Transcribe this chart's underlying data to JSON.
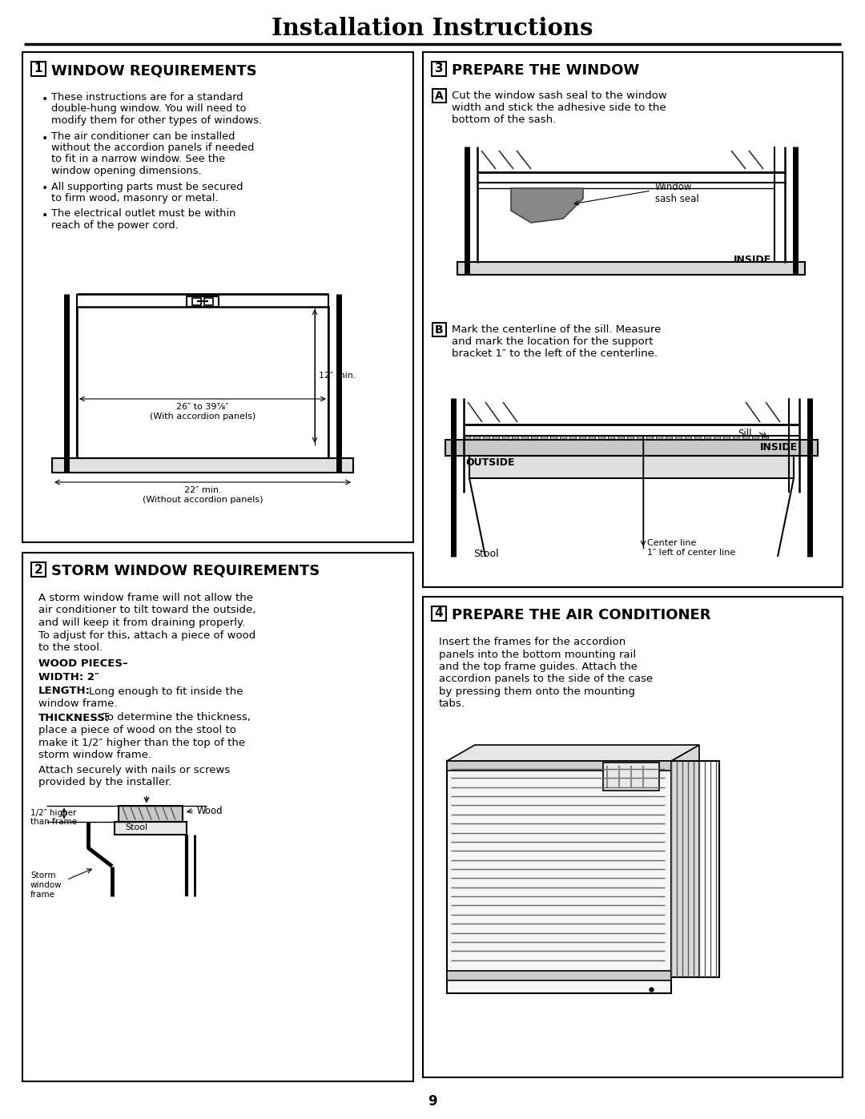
{
  "title": "Installation Instructions",
  "bg_color": "#ffffff",
  "page_number": "9",
  "s1_title": "1  WINDOW REQUIREMENTS",
  "s1_bullets": [
    "These instructions are for a standard\ndouble-hung window. You will need to\nmodify them for other types of windows.",
    "The air conditioner can be installed\nwithout the accordion panels if needed\nto fit in a narrow window. See the\nwindow opening dimensions.",
    "All supporting parts must be secured\nto firm wood, masonry or metal.",
    "The electrical outlet must be within\nreach of the power cord."
  ],
  "s1_dim1": "12″ min.",
  "s1_dim2": "26″ to 39⅞″\n(With accordion panels)",
  "s1_dim3": "22″ min.\n(Without accordion panels)",
  "s2_title": "2  STORM WINDOW REQUIREMENTS",
  "s2_body": "A storm window frame will not allow the\nair conditioner to tilt toward the outside,\nand will keep it from draining properly.\nTo adjust for this, attach a piece of wood\nto the stool.",
  "s2_wood": "WOOD PIECES–",
  "s2_width": "WIDTH: 2″",
  "s2_length_rest": "Long enough to fit inside the\nwindow frame.",
  "s2_thickness_rest": "To determine the thickness,\nplace a piece of wood on the stool to\nmake it 1/2″ higher than the top of the\nstorm window frame.",
  "s2_attach": "Attach securely with nails or screws\nprovided by the installer.",
  "s2_lbl_half": "1/2″ higher\nthan frame",
  "s2_lbl_storm": "Storm\nwindow\nframe",
  "s2_lbl_wood": "Wood",
  "s2_lbl_stool": "Stool",
  "s3_title": "3  PREPARE THE WINDOW",
  "s3_A_text": "Cut the window sash seal to the window\nwidth and stick the adhesive side to the\nbottom of the sash.",
  "s3_inside1": "INSIDE",
  "s3_sash_lbl": "Window\nsash seal",
  "s3_B_text": "Mark the centerline of the sill. Measure\nand mark the location for the support\nbracket 1″ to the left of the centerline.",
  "s3_sill": "Sill",
  "s3_outside": "OUTSIDE",
  "s3_inside2": "INSIDE",
  "s3_cline": "Center line",
  "s3_1inch": "1″ left of center line",
  "s3_stool": "Stool",
  "s4_title": "4  PREPARE THE AIR CONDITIONER",
  "s4_body": "Insert the frames for the accordion\npanels into the bottom mounting rail\nand the top frame guides. Attach the\naccordion panels to the side of the case\nby pressing them onto the mounting\ntabs."
}
